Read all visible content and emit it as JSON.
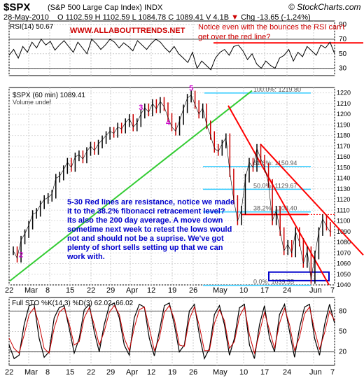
{
  "header": {
    "symbol": "$SPX",
    "symbol_name": "(S&P 500 Large Cap Index) INDX",
    "date": "28-May-2010",
    "ohlc_text": "O 1102.59  H 1102.59  L 1084.78  C 1089.41  V 4.1B",
    "change_text": "Chg -13.65 (-1.24%)",
    "change_arrow": "▼",
    "brand": "© StockCharts.com"
  },
  "annotations": {
    "site": "WWW.ALLABOUTTRENDS.NET",
    "note_top": "Notice even with  the bounces the RSI can't get over the red line?",
    "note_main": "5-30 Red lines are resistance, notice we made it to the 38.2% fibonacci retracement level?  Its also the 200 day average.\nA move down sometime next week to retest the lows would not and should not be a suprise. We've got plenty of short sells setting up that we can work with."
  },
  "colors": {
    "up": "#000000",
    "down": "#cc0000",
    "trend_support": "#33cc33",
    "resistance": "#ff0000",
    "fib": "#33ccff",
    "box": "#0000cc",
    "note": "#0000cc",
    "site": "#cc0000"
  },
  "chart_data": [
    {
      "type": "line",
      "panel": "rsi",
      "label": "RSI(14) 50.67",
      "ylim": [
        20,
        95
      ],
      "y_ticks": [
        90,
        70,
        50,
        30
      ],
      "guides": [
        70,
        30
      ],
      "resistance_level": 65,
      "values": [
        48,
        56,
        44,
        60,
        52,
        66,
        58,
        70,
        62,
        67,
        55,
        62,
        68,
        60,
        52,
        66,
        58,
        50,
        70,
        64,
        56,
        62,
        70,
        66,
        58,
        65,
        60,
        54,
        68,
        62,
        56,
        64,
        70,
        66,
        58,
        52,
        60,
        50,
        44,
        38,
        52,
        30,
        40,
        34,
        28,
        44,
        52,
        56,
        48,
        60,
        62,
        54,
        42,
        50,
        36,
        30,
        40,
        34,
        30,
        44,
        48,
        56,
        40,
        52,
        46,
        60,
        54,
        48,
        62,
        58,
        66,
        50
      ]
    },
    {
      "type": "line",
      "panel": "price",
      "label": "$SPX (60 min) 1089.41",
      "volume_label": "Volume undef",
      "ylim": [
        1040,
        1225
      ],
      "y_ticks": [
        1220,
        1210,
        1200,
        1190,
        1180,
        1170,
        1160,
        1150,
        1140,
        1130,
        1120,
        1110,
        1100,
        1090,
        1080,
        1070,
        1060,
        1050,
        1040
      ],
      "x_tick_labels": [
        "22",
        "Mar",
        "8",
        "15",
        "22",
        "29",
        "Apr",
        "12",
        "19",
        "26",
        "May",
        "10",
        "17",
        "24",
        "Jun",
        "7"
      ],
      "close": [
        1072,
        1065,
        1082,
        1088,
        1096,
        1106,
        1108,
        1115,
        1120,
        1122,
        1125,
        1140,
        1142,
        1148,
        1155,
        1150,
        1160,
        1162,
        1158,
        1165,
        1170,
        1166,
        1172,
        1176,
        1180,
        1184,
        1182,
        1188,
        1186,
        1192,
        1196,
        1188,
        1192,
        1200,
        1206,
        1202,
        1210,
        1205,
        1212,
        1207,
        1197,
        1188,
        1184,
        1194,
        1205,
        1215,
        1218,
        1209,
        1200,
        1206,
        1190,
        1180,
        1168,
        1165,
        1172,
        1178,
        1145,
        1120,
        1100,
        1110,
        1140,
        1155,
        1150,
        1168,
        1158,
        1150,
        1135,
        1100,
        1110,
        1090,
        1072,
        1078,
        1070,
        1090,
        1080,
        1060,
        1072,
        1045,
        1068,
        1090,
        1102,
        1095,
        1089.41
      ],
      "pivot_labels": [
        {
          "text": "2",
          "index": 2,
          "price": 1066
        },
        {
          "text": "3",
          "index": 33,
          "price": 1204
        },
        {
          "text": "4",
          "index": 40,
          "price": 1190
        },
        {
          "text": "5",
          "index": 46,
          "price": 1222
        }
      ],
      "fibonacci_levels": [
        {
          "label": "100.0%: 1219.80",
          "price": 1219.8
        },
        {
          "label": "61.8%: 1150.94",
          "price": 1150.94
        },
        {
          "label": "50.0%: 1129.67",
          "price": 1129.67
        },
        {
          "label": "38.2%: 1108.40",
          "price": 1108.4
        },
        {
          "label": "0.0%: 1039.55",
          "price": 1039.55
        }
      ],
      "support_box": [
        1044,
        1052
      ]
    },
    {
      "type": "line",
      "panel": "stochastic",
      "label": "Full STO %K(14,3) %D(3) 62.02, 66.02",
      "ylim": [
        0,
        100
      ],
      "y_ticks": [
        80,
        50,
        20
      ],
      "guides": [
        80,
        20
      ],
      "k": [
        30,
        10,
        15,
        60,
        88,
        90,
        40,
        12,
        20,
        70,
        85,
        88,
        55,
        18,
        40,
        82,
        90,
        50,
        20,
        60,
        88,
        92,
        70,
        30,
        15,
        70,
        90,
        86,
        40,
        14,
        50,
        88,
        92,
        60,
        20,
        30,
        80,
        90,
        45,
        10,
        25,
        75,
        88,
        60,
        15,
        40,
        85,
        90,
        30,
        10,
        60,
        88,
        40,
        20,
        75,
        90,
        50,
        12,
        55,
        86,
        90,
        40,
        15,
        60,
        90,
        62
      ],
      "d": [
        40,
        25,
        18,
        45,
        75,
        85,
        60,
        25,
        18,
        55,
        78,
        85,
        62,
        30,
        35,
        70,
        85,
        60,
        30,
        50,
        78,
        88,
        75,
        40,
        22,
        55,
        82,
        86,
        55,
        22,
        40,
        78,
        88,
        68,
        30,
        28,
        68,
        86,
        58,
        22,
        22,
        62,
        82,
        66,
        25,
        35,
        72,
        86,
        45,
        18,
        48,
        78,
        52,
        25,
        62,
        84,
        60,
        22,
        42,
        76,
        86,
        52,
        24,
        48,
        80,
        66
      ]
    }
  ]
}
